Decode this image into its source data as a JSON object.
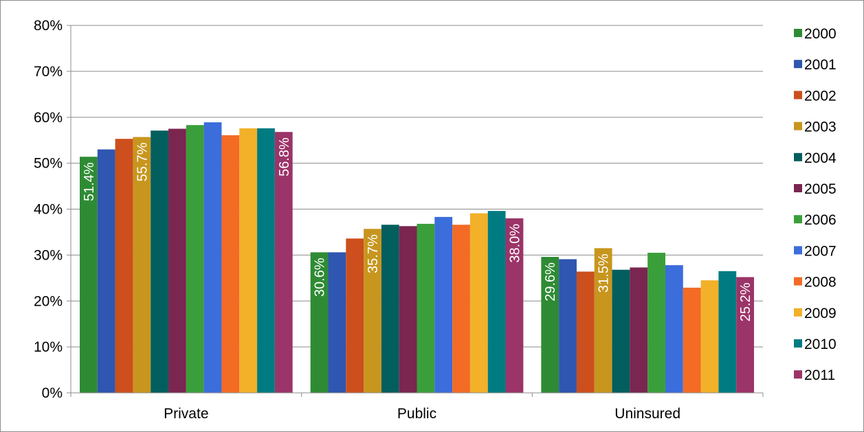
{
  "chart_data": {
    "type": "bar",
    "title": "",
    "xlabel": "",
    "ylabel": "",
    "ylim": [
      0,
      80
    ],
    "ytick_step": 10,
    "ytick_labels": [
      "0%",
      "10%",
      "20%",
      "30%",
      "40%",
      "50%",
      "60%",
      "70%",
      "80%"
    ],
    "grid": "horizontal",
    "legend_position": "right",
    "categories": [
      "Private",
      "Public",
      "Uninsured"
    ],
    "series": [
      {
        "name": "2000",
        "color": "#2e8b34",
        "values": [
          51.4,
          30.6,
          29.6
        ],
        "labels": [
          "51.4%",
          "30.6%",
          "29.6%"
        ]
      },
      {
        "name": "2001",
        "color": "#2f56b0",
        "values": [
          53.0,
          30.6,
          29.1
        ]
      },
      {
        "name": "2002",
        "color": "#cc4f1d",
        "values": [
          55.3,
          33.6,
          26.4
        ]
      },
      {
        "name": "2003",
        "color": "#c8961e",
        "values": [
          55.7,
          35.7,
          31.5
        ],
        "labels": [
          "55.7%",
          "35.7%",
          "31.5%"
        ]
      },
      {
        "name": "2004",
        "color": "#035e5e",
        "values": [
          57.1,
          36.6,
          26.8
        ]
      },
      {
        "name": "2005",
        "color": "#7a2651",
        "values": [
          57.5,
          36.3,
          27.3
        ]
      },
      {
        "name": "2006",
        "color": "#3a9f3a",
        "values": [
          58.3,
          36.8,
          30.5
        ]
      },
      {
        "name": "2007",
        "color": "#3b6ddb",
        "values": [
          58.9,
          38.3,
          27.8
        ]
      },
      {
        "name": "2008",
        "color": "#f36b25",
        "values": [
          56.1,
          36.6,
          22.9
        ]
      },
      {
        "name": "2009",
        "color": "#f2b129",
        "values": [
          57.6,
          39.1,
          24.5
        ]
      },
      {
        "name": "2010",
        "color": "#007b82",
        "values": [
          57.6,
          39.6,
          26.5
        ]
      },
      {
        "name": "2011",
        "color": "#9b3468",
        "values": [
          56.8,
          38.0,
          25.2
        ],
        "labels": [
          "56.8%",
          "38.0%",
          "25.2%"
        ]
      }
    ]
  }
}
